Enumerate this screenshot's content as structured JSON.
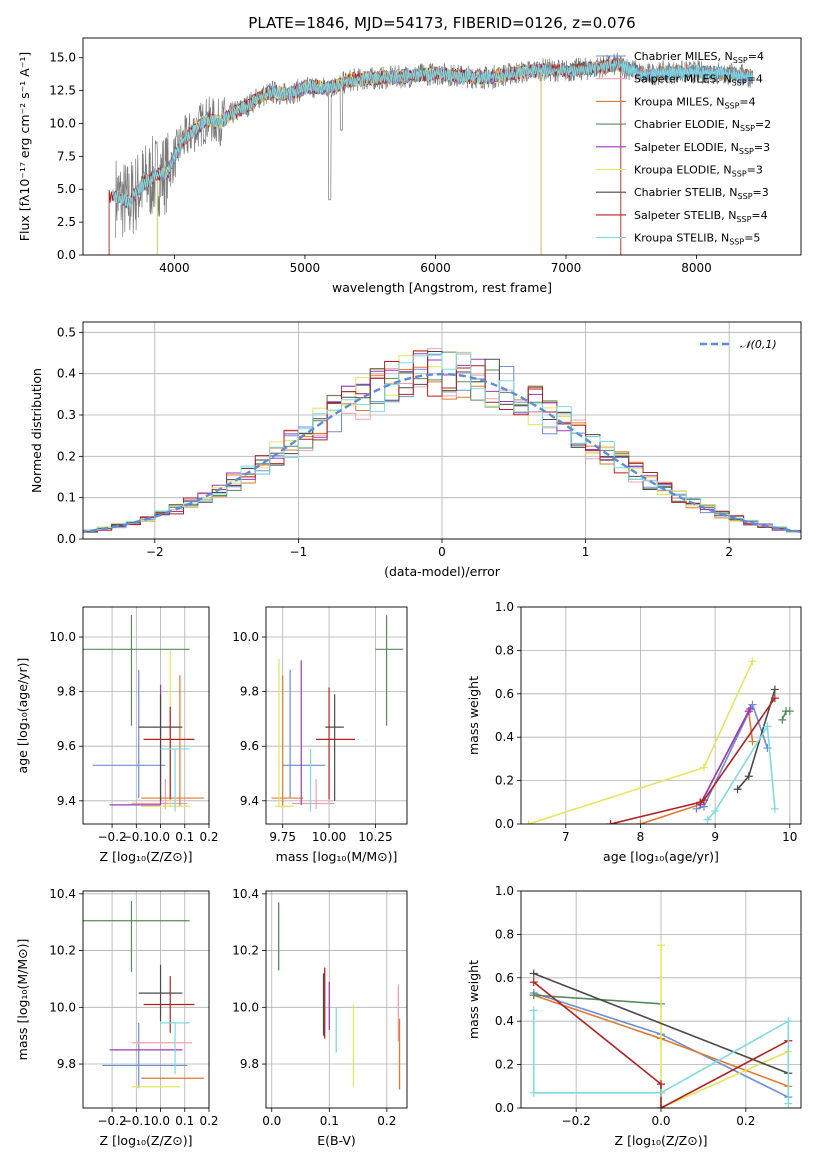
{
  "figure": {
    "title": "PLATE=1846, MJD=54173, FIBERID=0126, z=0.076",
    "series_colors": [
      "#6b8fd8",
      "#f4a0a8",
      "#e07a2e",
      "#5a8a5a",
      "#9b3ab8",
      "#e6e65c",
      "#4a4a4a",
      "#b22222",
      "#7edbe0"
    ],
    "legend_labels": [
      "Chabrier MILES, N",
      "Salpeter MILES, N",
      "Kroupa MILES, N",
      "Chabrier ELODIE, N",
      "Salpeter ELODIE, N",
      "Kroupa ELODIE, N",
      "Chabrier STELIB, N",
      "Salpeter STELIB, N",
      "Kroupa STELIB, N"
    ],
    "legend_sub": "SSP",
    "legend_nssp": [
      "=4",
      "=4",
      "=4",
      "=2",
      "=3",
      "=3",
      "=3",
      "=4",
      "=5"
    ]
  },
  "chart_data": [
    {
      "id": "spectrum",
      "type": "line",
      "xlabel": "wavelength [Angstrom, rest frame]",
      "ylabel": "Flux [fλ10⁻¹⁷ erg cm⁻² s⁻¹ A⁻¹]",
      "xlim": [
        3300,
        8800
      ],
      "ylim": [
        0,
        16.5
      ],
      "xticks": [
        4000,
        5000,
        6000,
        7000,
        8000
      ],
      "yticks": [
        0.0,
        2.5,
        5.0,
        7.5,
        10.0,
        12.5,
        15.0
      ],
      "ytick_labels": [
        "0.0",
        "2.5",
        "5.0",
        "7.5",
        "10.0",
        "12.5",
        "15.0"
      ],
      "data_points": [
        [
          3550,
          4.5
        ],
        [
          3650,
          4.0
        ],
        [
          3750,
          5.3
        ],
        [
          3850,
          6.0
        ],
        [
          3950,
          6.3
        ],
        [
          4050,
          8.5
        ],
        [
          4150,
          9.5
        ],
        [
          4250,
          10.3
        ],
        [
          4350,
          10.1
        ],
        [
          4450,
          10.8
        ],
        [
          4550,
          11.3
        ],
        [
          4650,
          12.0
        ],
        [
          4750,
          12.4
        ],
        [
          4850,
          12.2
        ],
        [
          4950,
          12.5
        ],
        [
          5050,
          12.8
        ],
        [
          5150,
          12.7
        ],
        [
          5250,
          12.9
        ],
        [
          5350,
          13.3
        ],
        [
          5500,
          13.4
        ],
        [
          5650,
          13.5
        ],
        [
          5800,
          13.6
        ],
        [
          6000,
          13.8
        ],
        [
          6200,
          13.6
        ],
        [
          6400,
          13.5
        ],
        [
          6600,
          13.8
        ],
        [
          6800,
          14.1
        ],
        [
          7000,
          14.0
        ],
        [
          7200,
          14.2
        ],
        [
          7400,
          14.5
        ],
        [
          7600,
          13.7
        ],
        [
          7800,
          13.9
        ],
        [
          8000,
          13.9
        ],
        [
          8200,
          13.8
        ],
        [
          8400,
          13.6
        ]
      ],
      "cutoffs": [
        {
          "series": "Kroupa ELODIE",
          "lo": 3870,
          "hi": 6810
        },
        {
          "series": "Salpeter ELODIE",
          "lo": 3870,
          "hi": 6810
        },
        {
          "series": "Salpeter STELIB",
          "lo": 3500,
          "hi": 7420
        }
      ],
      "legend_loc": "right"
    },
    {
      "id": "residuals",
      "type": "step",
      "xlabel": "(data-model)/error",
      "ylabel": "Normed distribution",
      "xlim": [
        -2.5,
        2.5
      ],
      "ylim": [
        0,
        0.525
      ],
      "xticks": [
        -2,
        -1,
        0,
        1,
        2
      ],
      "yticks": [
        0.0,
        0.1,
        0.2,
        0.3,
        0.4,
        0.5
      ],
      "ytick_labels": [
        "0.0",
        "0.1",
        "0.2",
        "0.3",
        "0.4",
        "0.5"
      ],
      "bin_width": 0.1,
      "legend": "𝒩(0,1)",
      "legend_loc": "top-right",
      "gaussian_color": "#5b8dd9"
    },
    {
      "id": "age_vs_Z",
      "type": "errorbar",
      "xlabel": "Z [log₁₀(Z/Z⊙)]",
      "ylabel": "age  [log₁₀(age/yr)]",
      "xlim": [
        -0.32,
        0.2
      ],
      "ylim": [
        9.315,
        10.11
      ],
      "xticks": [
        -0.2,
        -0.1,
        0.0,
        0.1,
        0.2
      ],
      "xtick_labels": [
        "−0.2",
        "−0.1",
        "0.0",
        "0.1",
        "0.2"
      ],
      "yticks": [
        9.4,
        9.6,
        9.8,
        10.0
      ],
      "ytick_labels": [
        "9.4",
        "9.6",
        "9.8",
        "10.0"
      ],
      "points": [
        {
          "c": 0,
          "x": -0.09,
          "y": 9.53,
          "xe": [
            0.19,
            0.11
          ],
          "ye": [
            0.12,
            0.35
          ]
        },
        {
          "c": 1,
          "x": 0.02,
          "y": 9.39,
          "xe": [
            0.14,
            0.09
          ],
          "ye": [
            0.02,
            0.09
          ]
        },
        {
          "c": 2,
          "x": 0.08,
          "y": 9.41,
          "xe": [
            0.16,
            0.1
          ],
          "ye": [
            0.03,
            0.45
          ]
        },
        {
          "c": 3,
          "x": -0.12,
          "y": 9.955,
          "xe": [
            0.2,
            0.24
          ],
          "ye": [
            0.28,
            0.125
          ]
        },
        {
          "c": 4,
          "x": 0.0,
          "y": 9.385,
          "xe": [
            0.21,
            0.0
          ],
          "ye": [
            0.0,
            0.44
          ]
        },
        {
          "c": 5,
          "x": 0.04,
          "y": 9.38,
          "xe": [
            0.12,
            0.08
          ],
          "ye": [
            0.0,
            0.57
          ]
        },
        {
          "c": 6,
          "x": 0.0,
          "y": 9.67,
          "xe": [
            0.09,
            0.09
          ],
          "ye": [
            0.27,
            0.12
          ]
        },
        {
          "c": 7,
          "x": 0.04,
          "y": 9.625,
          "xe": [
            0.11,
            0.1
          ],
          "ye": [
            0.22,
            0.12
          ]
        },
        {
          "c": 8,
          "x": 0.06,
          "y": 9.59,
          "xe": [
            0.06,
            0.06
          ],
          "ye": [
            0.23,
            0.0
          ]
        }
      ]
    },
    {
      "id": "age_vs_mass",
      "type": "errorbar",
      "xlabel": "mass [log₁₀(M/M⊙)]",
      "ylabel": "",
      "xlim": [
        9.66,
        10.42
      ],
      "ylim": [
        9.315,
        10.11
      ],
      "xticks": [
        9.75,
        10.0,
        10.25
      ],
      "xtick_labels": [
        "9.75",
        "10.00",
        "10.25"
      ],
      "yticks": [
        9.4,
        9.6,
        9.8,
        10.0
      ],
      "ytick_labels": [
        "9.4",
        "9.6",
        "9.8",
        "10.0"
      ],
      "points": [
        {
          "c": 0,
          "x": 9.79,
          "y": 9.53,
          "xe": [
            0.04,
            0.19
          ],
          "ye": [
            0.12,
            0.35
          ]
        },
        {
          "c": 1,
          "x": 9.93,
          "y": 9.39,
          "xe": [
            0.13,
            0.1
          ],
          "ye": [
            0.02,
            0.09
          ]
        },
        {
          "c": 2,
          "x": 9.75,
          "y": 9.41,
          "xe": [
            0.06,
            0.11
          ],
          "ye": [
            0.03,
            0.45
          ]
        },
        {
          "c": 3,
          "x": 10.31,
          "y": 9.955,
          "xe": [
            0.06,
            0.09
          ],
          "ye": [
            0.28,
            0.125
          ]
        },
        {
          "c": 4,
          "x": 9.85,
          "y": 9.385,
          "xe": [
            0.0,
            0.0
          ],
          "ye": [
            0.0,
            0.53
          ]
        },
        {
          "c": 5,
          "x": 9.73,
          "y": 9.38,
          "xe": [
            0.02,
            0.08
          ],
          "ye": [
            0.0,
            0.54
          ]
        },
        {
          "c": 6,
          "x": 10.03,
          "y": 9.67,
          "xe": [
            0.05,
            0.05
          ],
          "ye": [
            0.27,
            0.12
          ]
        },
        {
          "c": 7,
          "x": 10.0,
          "y": 9.625,
          "xe": [
            0.07,
            0.14
          ],
          "ye": [
            0.22,
            0.19
          ]
        },
        {
          "c": 8,
          "x": 9.9,
          "y": 9.59,
          "xe": [
            0.0,
            0.0
          ],
          "ye": [
            0.23,
            0.0
          ]
        }
      ]
    },
    {
      "id": "weight_vs_age",
      "type": "line",
      "xlabel": "age  [log₁₀(age/yr)]",
      "ylabel": "mass weight",
      "xlim": [
        6.4,
        10.15
      ],
      "ylim": [
        0,
        1
      ],
      "xticks": [
        7,
        8,
        9,
        10
      ],
      "yticks": [
        0.0,
        0.2,
        0.4,
        0.6,
        0.8,
        1.0
      ],
      "ytick_labels": [
        "0.0",
        "0.2",
        "0.4",
        "0.6",
        "0.8",
        "1.0"
      ],
      "series": [
        {
          "c": 0,
          "x": [
            8.75,
            8.85,
            9.5,
            9.7
          ],
          "y": [
            0.07,
            0.08,
            0.55,
            0.35
          ]
        },
        {
          "c": 1,
          "x": 8.8,
          "y": 0
        },
        {
          "c": 2,
          "x": [
            8.0,
            8.8,
            9.45,
            9.5
          ],
          "y": [
            0.0,
            0.09,
            0.52,
            0.38
          ]
        },
        {
          "c": 3,
          "x": [
            9.9,
            9.95,
            10.0
          ],
          "y": [
            0.48,
            0.52,
            0.52
          ]
        },
        {
          "c": 4,
          "x": [
            8.8,
            9.45,
            9.47
          ],
          "y": [
            0.09,
            0.52,
            0.53
          ]
        },
        {
          "c": 5,
          "x": [
            6.5,
            8.85,
            9.5
          ],
          "y": [
            0.0,
            0.26,
            0.75
          ]
        },
        {
          "c": 6,
          "x": [
            9.3,
            9.45,
            9.8
          ],
          "y": [
            0.16,
            0.22,
            0.62
          ]
        },
        {
          "c": 7,
          "x": [
            7.6,
            8.8,
            8.85,
            9.8
          ],
          "y": [
            0.0,
            0.1,
            0.11,
            0.58
          ]
        },
        {
          "c": 8,
          "x": [
            8.9,
            9.0,
            9.7,
            9.8
          ],
          "y": [
            0.02,
            0.06,
            0.45,
            0.07
          ]
        }
      ]
    },
    {
      "id": "mass_vs_Z",
      "type": "errorbar",
      "xlabel": "Z [log₁₀(Z/Z⊙)]",
      "ylabel": "mass [log₁₀(M/M⊙)]",
      "xlim": [
        -0.32,
        0.2
      ],
      "ylim": [
        9.645,
        10.41
      ],
      "xticks": [
        -0.2,
        -0.1,
        0.0,
        0.1,
        0.2
      ],
      "xtick_labels": [
        "−0.2",
        "−0.1",
        "0.0",
        "0.1",
        "0.2"
      ],
      "yticks": [
        9.8,
        10.0,
        10.2,
        10.4
      ],
      "ytick_labels": [
        "9.8",
        "10.0",
        "10.2",
        "10.4"
      ],
      "points": [
        {
          "c": 0,
          "x": -0.09,
          "y": 9.795,
          "xe": [
            0.15,
            0.2
          ],
          "ye": [
            0.08,
            0.15
          ]
        },
        {
          "c": 1,
          "x": 0.03,
          "y": 9.875,
          "xe": [
            0.15,
            0.1
          ],
          "ye": [
            0.0,
            0.0
          ]
        },
        {
          "c": 2,
          "x": 0.07,
          "y": 9.75,
          "xe": [
            0.15,
            0.11
          ],
          "ye": [
            0.0,
            0.0
          ]
        },
        {
          "c": 3,
          "x": -0.12,
          "y": 10.305,
          "xe": [
            0.2,
            0.24
          ],
          "ye": [
            0.18,
            0.07
          ]
        },
        {
          "c": 4,
          "x": -0.03,
          "y": 9.85,
          "xe": [
            0.18,
            0.12
          ],
          "ye": [
            0.0,
            0.0
          ]
        },
        {
          "c": 5,
          "x": 0.0,
          "y": 9.72,
          "xe": [
            0.12,
            0.08
          ],
          "ye": [
            0.0,
            0.0
          ]
        },
        {
          "c": 6,
          "x": 0.0,
          "y": 10.05,
          "xe": [
            0.09,
            0.09
          ],
          "ye": [
            0.1,
            0.1
          ]
        },
        {
          "c": 7,
          "x": 0.04,
          "y": 10.01,
          "xe": [
            0.11,
            0.1
          ],
          "ye": [
            0.1,
            0.1
          ]
        },
        {
          "c": 8,
          "x": 0.06,
          "y": 9.945,
          "xe": [
            0.06,
            0.06
          ],
          "ye": [
            0.18,
            0.0
          ]
        }
      ]
    },
    {
      "id": "mass_vs_ebv",
      "type": "errorbar",
      "xlabel": "E(B-V)",
      "ylabel": "",
      "xlim": [
        -0.01,
        0.235
      ],
      "ylim": [
        9.645,
        10.41
      ],
      "xticks": [
        0.0,
        0.1,
        0.2
      ],
      "xtick_labels": [
        "0.0",
        "0.1",
        "0.2"
      ],
      "yticks": [
        9.8,
        10.0,
        10.2,
        10.4
      ],
      "ytick_labels": [
        "9.8",
        "10.0",
        "10.2",
        "10.4"
      ],
      "segments": [
        {
          "c": 3,
          "x": 0.012,
          "y1": 10.13,
          "y2": 10.37
        },
        {
          "c": 6,
          "x": 0.09,
          "y1": 9.9,
          "y2": 10.12
        },
        {
          "c": 7,
          "x": 0.092,
          "y1": 9.89,
          "y2": 10.14
        },
        {
          "c": 4,
          "x": 0.1,
          "y1": 9.92,
          "y2": 10.09
        },
        {
          "c": 8,
          "x": 0.112,
          "y1": 9.84,
          "y2": 10.0
        },
        {
          "c": 5,
          "x": 0.142,
          "y1": 9.72,
          "y2": 10.01
        },
        {
          "c": 1,
          "x": 0.22,
          "y1": 9.88,
          "y2": 10.08
        },
        {
          "c": 2,
          "x": 0.222,
          "y1": 9.71,
          "y2": 9.96
        }
      ]
    },
    {
      "id": "weight_vs_Z",
      "type": "line",
      "xlabel": "Z [log₁₀(Z/Z⊙)]",
      "ylabel": "mass weight",
      "xlim": [
        -0.33,
        0.33
      ],
      "ylim": [
        0,
        1
      ],
      "xticks": [
        -0.2,
        0.0,
        0.2
      ],
      "xtick_labels": [
        "−0.2",
        "0.0",
        "0.2"
      ],
      "yticks": [
        0.0,
        0.2,
        0.4,
        0.6,
        0.8,
        1.0
      ],
      "ytick_labels": [
        "0.0",
        "0.2",
        "0.4",
        "0.6",
        "0.8",
        "1.0"
      ],
      "series": [
        {
          "c": 0,
          "x": [
            -0.3,
            0.0,
            0.3
          ],
          "y": [
            0.53,
            0.34,
            0.05
          ]
        },
        {
          "c": 2,
          "x": [
            -0.3,
            0.0,
            0.3
          ],
          "y": [
            0.52,
            0.32,
            0.1
          ]
        },
        {
          "c": 3,
          "x": [
            -0.3,
            0.0
          ],
          "y": [
            0.52,
            0.48
          ]
        },
        {
          "c": 5,
          "x": [
            0.0,
            0.0,
            0.3
          ],
          "y": [
            0.75,
            0.0,
            0.26
          ]
        },
        {
          "c": 6,
          "x": [
            -0.3,
            0.3
          ],
          "y": [
            0.62,
            0.16
          ]
        },
        {
          "c": 7,
          "x": [
            -0.3,
            0.0,
            0.0,
            0.3
          ],
          "y": [
            0.58,
            0.11,
            0.0,
            0.31
          ]
        },
        {
          "c": 8,
          "x": [
            -0.3,
            -0.3,
            0.0,
            0.3,
            0.3
          ],
          "y": [
            0.45,
            0.07,
            0.07,
            0.4,
            0.02
          ]
        }
      ]
    }
  ]
}
